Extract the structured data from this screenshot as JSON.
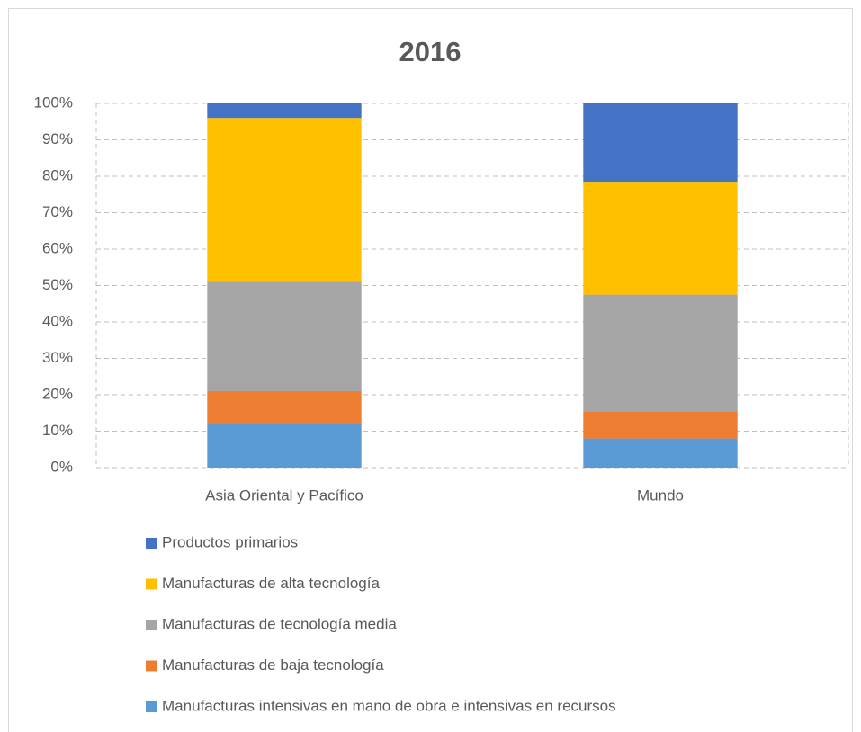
{
  "chart_data": {
    "type": "stacked_bar",
    "title": "2016",
    "categories": [
      "Asia Oriental y Pacífico",
      "Mundo"
    ],
    "series": [
      {
        "name": "Manufacturas intensivas en mano de obra e intensivas en recursos",
        "color": "#5b9bd5",
        "values": [
          12,
          8
        ]
      },
      {
        "name": "Manufacturas de baja tecnología",
        "color": "#ed7d31",
        "values": [
          9,
          7.5
        ]
      },
      {
        "name": "Manufacturas de tecnología media",
        "color": "#a5a5a5",
        "values": [
          30,
          32
        ]
      },
      {
        "name": "Manufacturas de alta tecnología",
        "color": "#ffc000",
        "values": [
          45,
          31
        ]
      },
      {
        "name": "Productos primarios",
        "color": "#4472c4",
        "values": [
          4,
          21.5
        ]
      }
    ],
    "ylim": [
      0,
      100
    ],
    "yticks": [
      {
        "value": 0,
        "label": "0%"
      },
      {
        "value": 10,
        "label": "10%"
      },
      {
        "value": 20,
        "label": "20%"
      },
      {
        "value": 30,
        "label": "30%"
      },
      {
        "value": 40,
        "label": "40%"
      },
      {
        "value": 50,
        "label": "50%"
      },
      {
        "value": 60,
        "label": "60%"
      },
      {
        "value": 70,
        "label": "70%"
      },
      {
        "value": 80,
        "label": "80%"
      },
      {
        "value": 90,
        "label": "90%"
      },
      {
        "value": 100,
        "label": "100%"
      }
    ],
    "grid": true,
    "legend": "bottom"
  }
}
